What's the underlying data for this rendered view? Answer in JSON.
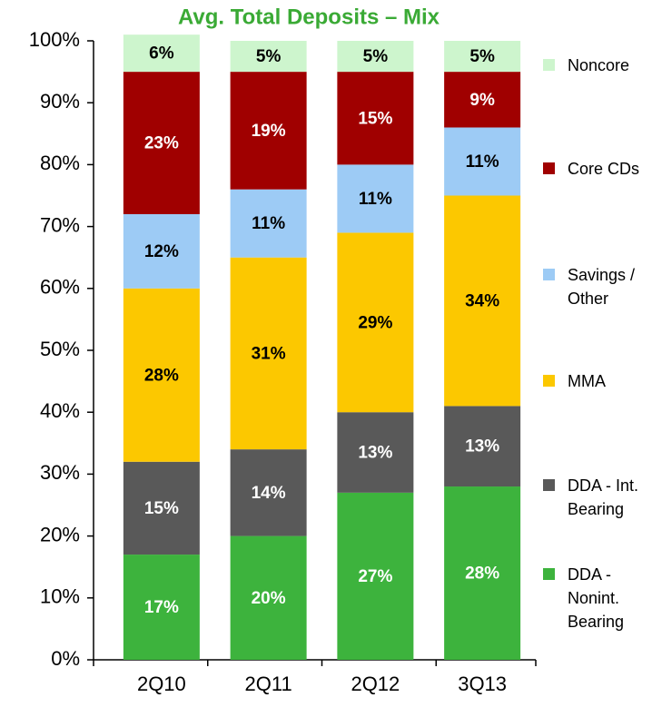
{
  "chart_data": {
    "type": "stacked_bar",
    "title": "Avg. Total Deposits –  Mix",
    "categories": [
      "2Q10",
      "2Q11",
      "2Q12",
      "3Q13"
    ],
    "series": [
      {
        "name": "DDA - Nonint. Bearing",
        "color": "#3db33d",
        "label_color": "#ffffff",
        "values": [
          17,
          20,
          27,
          28
        ],
        "value_labels": [
          "17%",
          "20%",
          "27%",
          "28%"
        ]
      },
      {
        "name": "DDA - Int. Bearing",
        "color": "#595959",
        "label_color": "#ffffff",
        "values": [
          15,
          14,
          13,
          13
        ],
        "value_labels": [
          "15%",
          "14%",
          "13%",
          "13%"
        ]
      },
      {
        "name": "MMA",
        "color": "#fcc800",
        "label_color": "#000000",
        "values": [
          28,
          31,
          29,
          34
        ],
        "value_labels": [
          "28%",
          "31%",
          "29%",
          "34%"
        ]
      },
      {
        "name": "Savings / Other",
        "color": "#9dcbf5",
        "label_color": "#000000",
        "values": [
          12,
          11,
          11,
          11
        ],
        "value_labels": [
          "12%",
          "11%",
          "11%",
          "11%"
        ]
      },
      {
        "name": "Core CDs",
        "color": "#a00000",
        "label_color": "#ffffff",
        "values": [
          23,
          19,
          15,
          9
        ],
        "value_labels": [
          "23%",
          "19%",
          "15%",
          "9%"
        ]
      },
      {
        "name": "Noncore",
        "color": "#cdf5cd",
        "label_color": "#000000",
        "values": [
          6,
          5,
          5,
          5
        ],
        "value_labels": [
          "6%",
          "5%",
          "5%",
          "5%"
        ]
      }
    ],
    "ylim": [
      0,
      100
    ],
    "yticks": [
      {
        "value": 0,
        "label": "0%"
      },
      {
        "value": 10,
        "label": "10%"
      },
      {
        "value": 20,
        "label": "20%"
      },
      {
        "value": 30,
        "label": "30%"
      },
      {
        "value": 40,
        "label": "40%"
      },
      {
        "value": 50,
        "label": "50%"
      },
      {
        "value": 60,
        "label": "60%"
      },
      {
        "value": 70,
        "label": "70%"
      },
      {
        "value": 80,
        "label": "80%"
      },
      {
        "value": 90,
        "label": "90%"
      },
      {
        "value": 100,
        "label": "100%"
      }
    ],
    "title_color": "#3aaa35"
  }
}
